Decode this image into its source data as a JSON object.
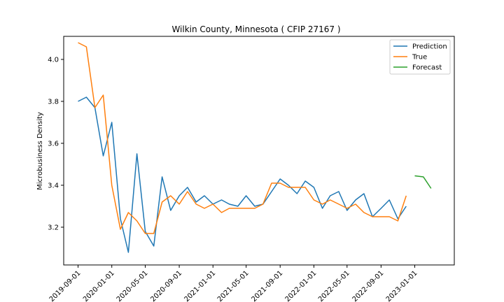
{
  "chart_data": {
    "type": "line",
    "title": "Wilkin County, Minnesota ( CFIP 27167 )",
    "xlabel": "",
    "ylabel": "Microbusiness Density",
    "ylim": [
      3.02,
      4.11
    ],
    "xlim": [
      "2019-07-11",
      "2023-05-24"
    ],
    "x_ticks": [
      "2019-09-01",
      "2020-01-01",
      "2020-05-01",
      "2020-09-01",
      "2021-01-01",
      "2021-05-01",
      "2021-09-01",
      "2022-01-01",
      "2022-05-01",
      "2022-09-01",
      "2023-01-01"
    ],
    "y_ticks": [
      3.2,
      3.4,
      3.6,
      3.8,
      4.0
    ],
    "y_tick_labels": [
      "3.2",
      "3.4",
      "3.6",
      "3.8",
      "4.0"
    ],
    "legend_position": "top-right",
    "grid": false,
    "series": [
      {
        "name": "Prediction",
        "color": "#1f77b4",
        "x": [
          "2019-09-01",
          "2019-10-01",
          "2019-11-01",
          "2019-12-01",
          "2020-01-01",
          "2020-02-01",
          "2020-03-01",
          "2020-04-01",
          "2020-05-01",
          "2020-06-01",
          "2020-07-01",
          "2020-08-01",
          "2020-09-01",
          "2020-10-01",
          "2020-11-01",
          "2020-12-01",
          "2021-01-01",
          "2021-02-01",
          "2021-03-01",
          "2021-04-01",
          "2021-05-01",
          "2021-06-01",
          "2021-07-01",
          "2021-08-01",
          "2021-09-01",
          "2021-10-01",
          "2021-11-01",
          "2021-12-01",
          "2022-01-01",
          "2022-02-01",
          "2022-03-01",
          "2022-04-01",
          "2022-05-01",
          "2022-06-01",
          "2022-07-01",
          "2022-08-01",
          "2022-09-01",
          "2022-10-01",
          "2022-11-01",
          "2022-12-01"
        ],
        "values": [
          3.8,
          3.82,
          3.77,
          3.54,
          3.7,
          3.24,
          3.08,
          3.55,
          3.18,
          3.11,
          3.44,
          3.28,
          3.35,
          3.39,
          3.32,
          3.35,
          3.31,
          3.33,
          3.31,
          3.3,
          3.35,
          3.3,
          3.31,
          3.37,
          3.43,
          3.4,
          3.36,
          3.42,
          3.39,
          3.29,
          3.35,
          3.37,
          3.28,
          3.33,
          3.36,
          3.25,
          3.29,
          3.33,
          3.24,
          3.3
        ]
      },
      {
        "name": "True",
        "color": "#ff7f0e",
        "x": [
          "2019-09-01",
          "2019-10-01",
          "2019-11-01",
          "2019-12-01",
          "2020-01-01",
          "2020-02-01",
          "2020-03-01",
          "2020-04-01",
          "2020-05-01",
          "2020-06-01",
          "2020-07-01",
          "2020-08-01",
          "2020-09-01",
          "2020-10-01",
          "2020-11-01",
          "2020-12-01",
          "2021-01-01",
          "2021-02-01",
          "2021-03-01",
          "2021-04-01",
          "2021-05-01",
          "2021-06-01",
          "2021-07-01",
          "2021-08-01",
          "2021-09-01",
          "2021-10-01",
          "2021-11-01",
          "2021-12-01",
          "2022-01-01",
          "2022-02-01",
          "2022-03-01",
          "2022-04-01",
          "2022-05-01",
          "2022-06-01",
          "2022-07-01",
          "2022-08-01",
          "2022-09-01",
          "2022-10-01",
          "2022-11-01",
          "2022-12-01"
        ],
        "values": [
          4.08,
          4.06,
          3.77,
          3.83,
          3.4,
          3.19,
          3.27,
          3.23,
          3.17,
          3.17,
          3.32,
          3.35,
          3.31,
          3.37,
          3.31,
          3.29,
          3.31,
          3.27,
          3.29,
          3.29,
          3.29,
          3.29,
          3.31,
          3.41,
          3.41,
          3.39,
          3.39,
          3.39,
          3.33,
          3.31,
          3.33,
          3.31,
          3.29,
          3.31,
          3.27,
          3.25,
          3.25,
          3.25,
          3.23,
          3.35
        ]
      },
      {
        "name": "Forecast",
        "color": "#2ca02c",
        "x": [
          "2023-01-01",
          "2023-02-01",
          "2023-03-01"
        ],
        "values": [
          3.445,
          3.44,
          3.385
        ]
      }
    ]
  }
}
